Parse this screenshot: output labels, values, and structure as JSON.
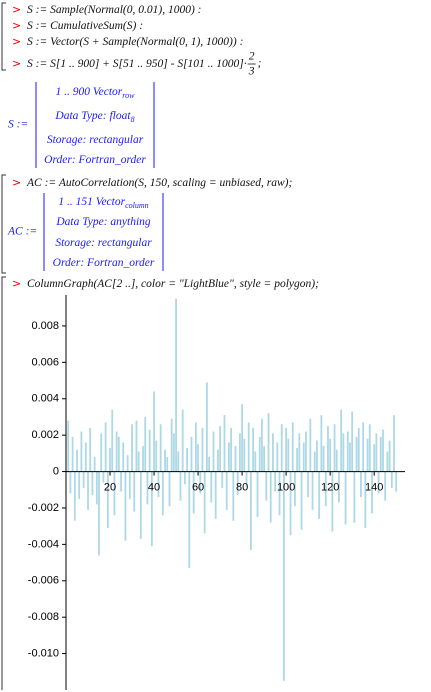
{
  "worksheet": {
    "inputs": [
      {
        "text": "S := Sample(Normal(0, 0.01), 1000) :"
      },
      {
        "text": "S := CumulativeSum(S) :"
      },
      {
        "text": "S := Vector(S + Sample(Normal(0, 1), 1000)) :"
      },
      {
        "text": "S := S[1 .. 900] + S[51 .. 950] - S[101 .. 1000]·",
        "numerator": "2",
        "denominator": "3",
        "end": ";"
      },
      {
        "text": "AC := AutoCorrelation(S, 150, scaling = unbiased, raw);"
      },
      {
        "text": "ColumnGraph(AC[2 ..], color = \"LightBlue\", style = polygon);"
      }
    ],
    "prompt": ">",
    "outputs": [
      {
        "label": "S :=",
        "rows": [
          {
            "text": "1 .. 900 Vector",
            "sub": "row"
          },
          {
            "text": "Data Type: float",
            "sub": "8"
          },
          {
            "text": "Storage: rectangular"
          },
          {
            "text": "Order: Fortran_order"
          }
        ]
      },
      {
        "label": "AC :=",
        "rows": [
          {
            "text": "1 .. 151 Vector",
            "sub": "column"
          },
          {
            "text": "Data Type: anything"
          },
          {
            "text": "Storage: rectangular"
          },
          {
            "text": "Order: Fortran_order"
          }
        ]
      }
    ]
  },
  "chart_data": {
    "type": "bar",
    "color": "#add8e6",
    "x": [
      1,
      2,
      3,
      4,
      5,
      6,
      7,
      8,
      9,
      10,
      11,
      12,
      13,
      14,
      15,
      16,
      17,
      18,
      19,
      20,
      21,
      22,
      23,
      24,
      25,
      26,
      27,
      28,
      29,
      30,
      31,
      32,
      33,
      34,
      35,
      36,
      37,
      38,
      39,
      40,
      41,
      42,
      43,
      44,
      45,
      46,
      47,
      48,
      49,
      50,
      51,
      52,
      53,
      54,
      55,
      56,
      57,
      58,
      59,
      60,
      61,
      62,
      63,
      64,
      65,
      66,
      67,
      68,
      69,
      70,
      71,
      72,
      73,
      74,
      75,
      76,
      77,
      78,
      79,
      80,
      81,
      82,
      83,
      84,
      85,
      86,
      87,
      88,
      89,
      90,
      91,
      92,
      93,
      94,
      95,
      96,
      97,
      98,
      99,
      100,
      101,
      102,
      103,
      104,
      105,
      106,
      107,
      108,
      109,
      110,
      111,
      112,
      113,
      114,
      115,
      116,
      117,
      118,
      119,
      120,
      121,
      122,
      123,
      124,
      125,
      126,
      127,
      128,
      129,
      130,
      131,
      132,
      133,
      134,
      135,
      136,
      137,
      138,
      139,
      140,
      141,
      142,
      143,
      144,
      145,
      146,
      147,
      148,
      149,
      150
    ],
    "values": [
      0.0028,
      -0.0012,
      0.0019,
      -0.0027,
      0.0012,
      -0.0015,
      0.0022,
      -0.0009,
      0.0016,
      -0.0021,
      0.0024,
      -0.0013,
      0.0008,
      -0.0018,
      -0.0046,
      0.0021,
      -0.0006,
      0.0027,
      -0.0031,
      0.0013,
      0.0034,
      -0.0024,
      0.0022,
      0.0019,
      -0.0011,
      0.0016,
      -0.0038,
      0.0009,
      -0.0015,
      0.0026,
      -0.0022,
      0.0028,
      0.0011,
      -0.0037,
      0.0014,
      0.003,
      -0.0018,
      0.0023,
      -0.0041,
      0.0044,
      0.0017,
      -0.0014,
      0.0026,
      -0.0024,
      0.0012,
      0.0008,
      -0.0019,
      0.0029,
      0.0021,
      0.0095,
      0.0011,
      -0.0016,
      0.0034,
      -0.0007,
      0.0013,
      -0.0053,
      0.0019,
      -0.0023,
      0.0027,
      0.0015,
      -0.0012,
      0.0024,
      -0.0034,
      0.0049,
      0.0008,
      -0.0017,
      0.0022,
      -0.0026,
      0.0012,
      0.0025,
      -0.0009,
      0.0031,
      -0.0021,
      0.0016,
      0.0024,
      -0.0027,
      0.0014,
      -0.0013,
      0.0021,
      0.0037,
      0.0018,
      -0.0008,
      0.0027,
      -0.0043,
      0.0024,
      0.0011,
      -0.0025,
      0.0019,
      0.0029,
      0.0014,
      -0.0016,
      0.0032,
      -0.0028,
      0.0021,
      -0.0011,
      0.0016,
      -0.0024,
      0.0026,
      -0.0115,
      0.0024,
      0.0018,
      -0.0035,
      0.0027,
      -0.0019,
      0.0013,
      0.0021,
      -0.0032,
      0.0016,
      0.0022,
      -0.0014,
      0.0029,
      -0.0021,
      0.0011,
      0.0017,
      -0.0026,
      0.0031,
      0.0014,
      -0.0019,
      0.0025,
      0.0018,
      -0.0033,
      0.0026,
      0.0012,
      -0.0017,
      0.0034,
      0.0021,
      -0.0029,
      0.0022,
      0.0016,
      0.0033,
      -0.0028,
      0.0019,
      0.0024,
      -0.0014,
      0.0027,
      -0.0031,
      0.0018,
      0.0026,
      -0.0023,
      0.0015,
      0.0021,
      -0.0012,
      0.0019,
      0.0023,
      -0.0016,
      0.0011,
      0.0017,
      -0.0009,
      0.0031,
      -0.0011
    ],
    "xlim": [
      0,
      154
    ],
    "xticks": [
      20,
      40,
      60,
      80,
      100,
      120,
      140
    ],
    "ylim": [
      -0.012,
      0.0097
    ],
    "yticks": [
      {
        "value": -0.01,
        "label": "-0.010"
      },
      -0.008,
      -0.006,
      -0.004,
      -0.002,
      0,
      0.002,
      0.004,
      0.006,
      0.008
    ]
  }
}
